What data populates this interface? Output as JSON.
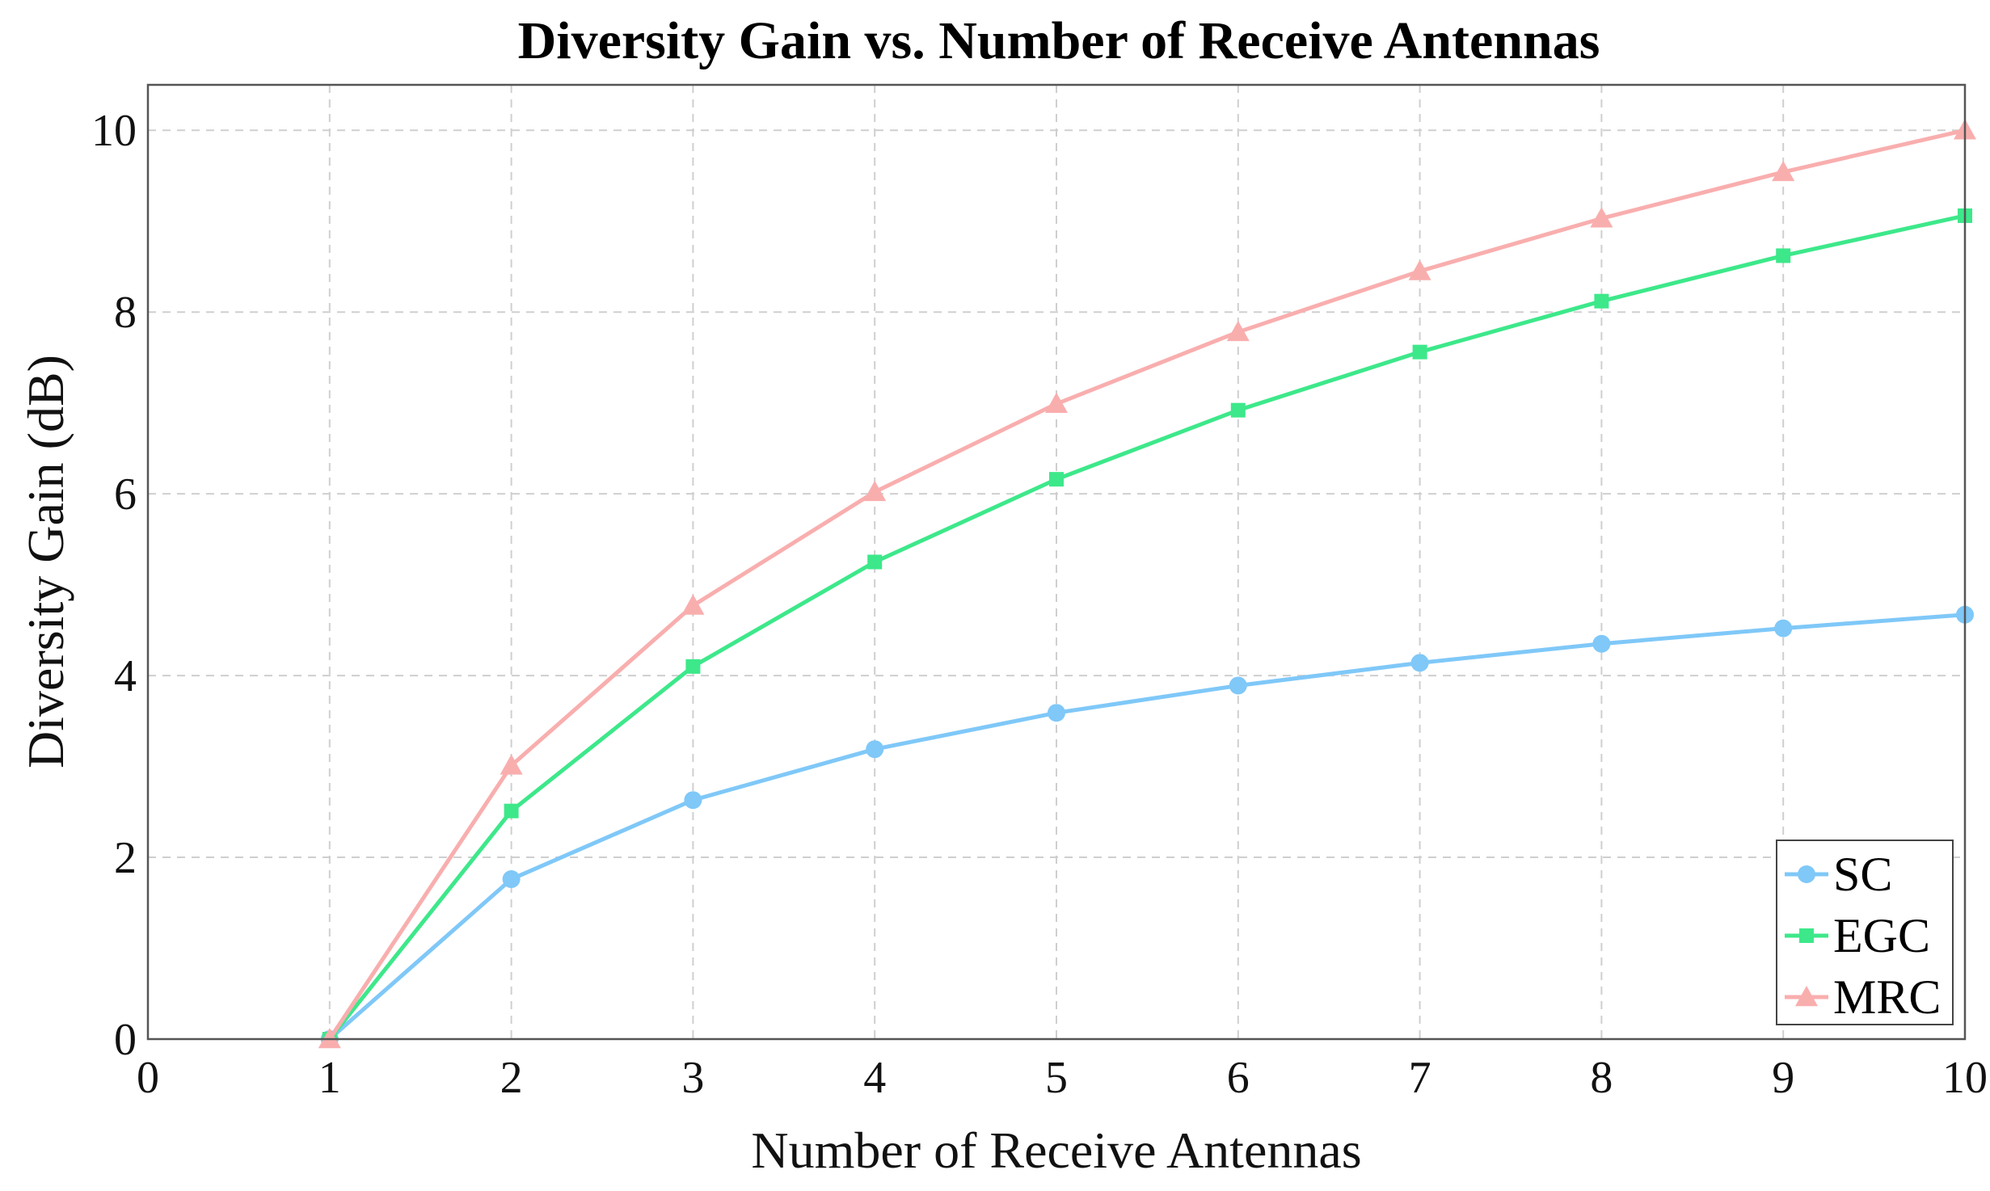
{
  "chart_data": {
    "type": "line",
    "title": "Diversity Gain vs. Number of Receive Antennas",
    "xlabel": "Number of Receive Antennas",
    "ylabel": "Diversity Gain (dB)",
    "xlim": [
      0,
      10
    ],
    "ylim": [
      0,
      10.5
    ],
    "xticks": [
      0,
      1,
      2,
      3,
      4,
      5,
      6,
      7,
      8,
      9,
      10
    ],
    "yticks": [
      0,
      2,
      4,
      6,
      8,
      10
    ],
    "grid": true,
    "legend_position": "bottom-right",
    "x": [
      1,
      2,
      3,
      4,
      5,
      6,
      7,
      8,
      9,
      10
    ],
    "series": [
      {
        "name": "SC",
        "color": "#7fc8f8",
        "marker": "circle",
        "values": [
          0,
          1.76,
          2.63,
          3.19,
          3.59,
          3.89,
          4.14,
          4.35,
          4.52,
          4.67
        ]
      },
      {
        "name": "EGC",
        "color": "#3de88a",
        "marker": "square",
        "values": [
          0,
          2.51,
          4.1,
          5.25,
          6.16,
          6.92,
          7.56,
          8.12,
          8.62,
          9.06
        ]
      },
      {
        "name": "MRC",
        "color": "#f9aeae",
        "marker": "triangle",
        "values": [
          0,
          3.01,
          4.77,
          6.02,
          6.99,
          7.78,
          8.45,
          9.03,
          9.54,
          10.0
        ]
      }
    ]
  }
}
